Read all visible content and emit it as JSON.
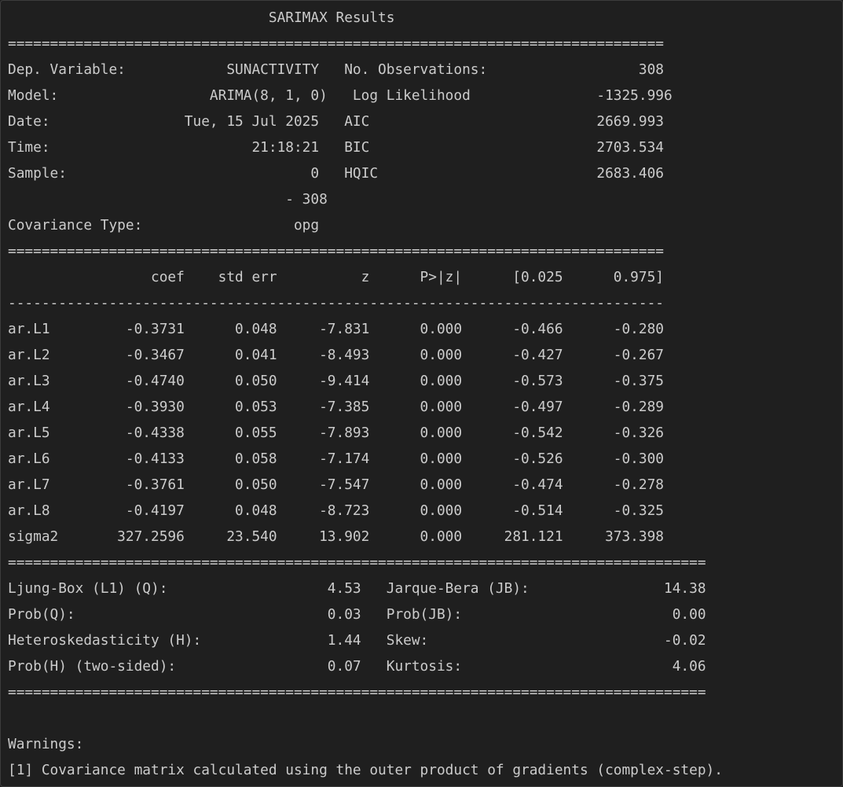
{
  "output": {
    "lines": [
      "                               SARIMAX Results                                ",
      "==============================================================================",
      "Dep. Variable:            SUNACTIVITY   No. Observations:                  308",
      "Model:                  ARIMA(8, 1, 0)   Log Likelihood               -1325.996",
      "Date:                Tue, 15 Jul 2025   AIC                           2669.993",
      "Time:                        21:18:21   BIC                           2703.534",
      "Sample:                             0   HQIC                          2683.406",
      "                                 - 308                                        ",
      "Covariance Type:                  opg                                         ",
      "==============================================================================",
      "                 coef    std err          z      P>|z|      [0.025      0.975]",
      "------------------------------------------------------------------------------",
      "ar.L1         -0.3731      0.048     -7.831      0.000      -0.466      -0.280",
      "ar.L2         -0.3467      0.041     -8.493      0.000      -0.427      -0.267",
      "ar.L3         -0.4740      0.050     -9.414      0.000      -0.573      -0.375",
      "ar.L4         -0.3930      0.053     -7.385      0.000      -0.497      -0.289",
      "ar.L5         -0.4338      0.055     -7.893      0.000      -0.542      -0.326",
      "ar.L6         -0.4133      0.058     -7.174      0.000      -0.526      -0.300",
      "ar.L7         -0.3761      0.050     -7.547      0.000      -0.474      -0.278",
      "ar.L8         -0.4197      0.048     -8.723      0.000      -0.514      -0.325",
      "sigma2       327.2596     23.540     13.902      0.000     281.121     373.398",
      "===================================================================================",
      "Ljung-Box (L1) (Q):                   4.53   Jarque-Bera (JB):                14.38",
      "Prob(Q):                              0.03   Prob(JB):                         0.00",
      "Heteroskedasticity (H):               1.44   Skew:                            -0.02",
      "Prob(H) (two-sided):                  0.07   Kurtosis:                         4.06",
      "===================================================================================",
      "",
      "Warnings:",
      "[1] Covariance matrix calculated using the outer product of gradients (complex-step)."
    ]
  }
}
